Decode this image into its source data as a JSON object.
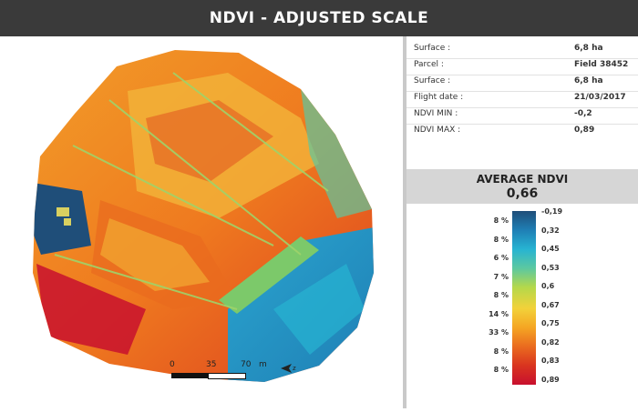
{
  "header": {
    "title": "NDVI - ADJUSTED SCALE"
  },
  "info": [
    {
      "label": "Surface :",
      "value": "6,8 ha"
    },
    {
      "label": "Parcel :",
      "value": "Field 38452"
    },
    {
      "label": "Surface :",
      "value": "6,8 ha"
    },
    {
      "label": "Flight date :",
      "value": "21/03/2017"
    },
    {
      "label": "NDVI MIN :",
      "value": "-0,2"
    },
    {
      "label": "NDVI MAX :",
      "value": "0,89"
    }
  ],
  "average": {
    "title": "AVERAGE NDVI",
    "value": "0,66"
  },
  "legend": [
    {
      "pct": "8 %",
      "value": "-0,19",
      "color": "#1f4e79"
    },
    {
      "pct": "8 %",
      "value": "0,32",
      "color": "#1f7fb5"
    },
    {
      "pct": "6 %",
      "value": "0,45",
      "color": "#27b4d2"
    },
    {
      "pct": "7 %",
      "value": "0,53",
      "color": "#5cc8a0"
    },
    {
      "pct": "8 %",
      "value": "0,6",
      "color": "#b5d84a"
    },
    {
      "pct": "14 %",
      "value": "0,67",
      "color": "#f2d23a"
    },
    {
      "pct": "33 %",
      "value": "0,75",
      "color": "#f5a623"
    },
    {
      "pct": "8 %",
      "value": "0,82",
      "color": "#ea6b1f"
    },
    {
      "pct": "8 %",
      "value": "0,83",
      "color": "#d9341f"
    },
    {
      "pct": "",
      "value": "0,89",
      "color": "#c8102e"
    }
  ],
  "scalebar": {
    "ticks": [
      "0",
      "35",
      "70"
    ],
    "unit": "m"
  },
  "map": {
    "north_icon": "north-arrow-icon"
  }
}
